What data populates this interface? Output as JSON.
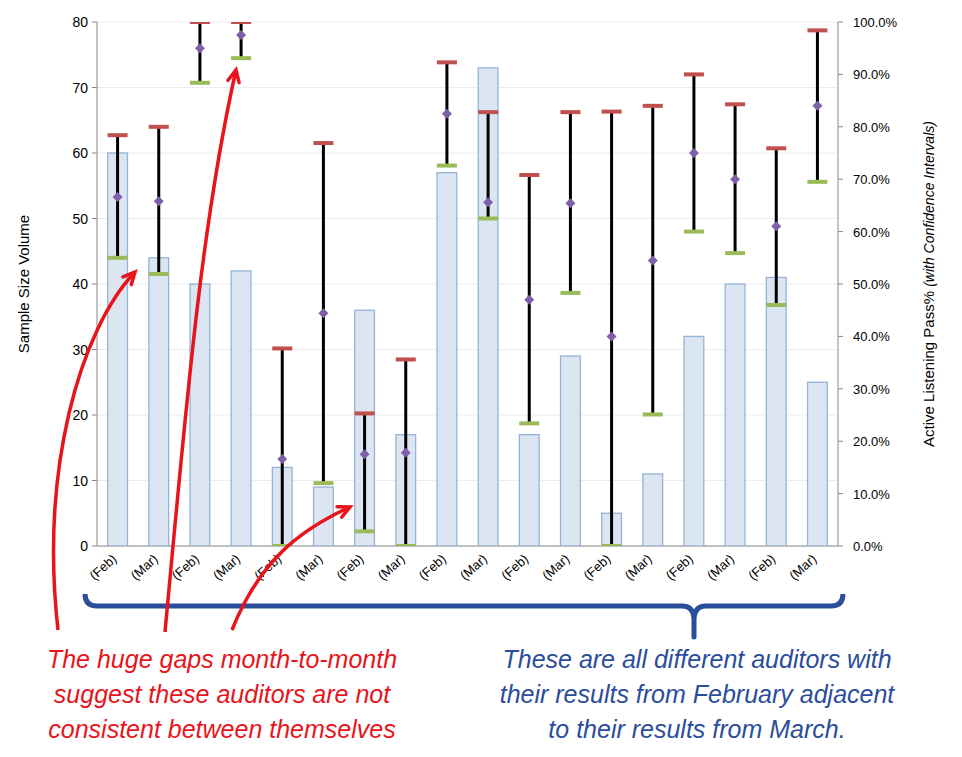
{
  "chart_data": {
    "type": "bar",
    "y_label": "Sample Size Volume",
    "y2_label": "Active Listening Pass%",
    "y2_label_note": "(with Confidence Intervals)",
    "categories": [
      "(Feb)",
      "(Mar)",
      "(Feb)",
      "(Mar)",
      "(Feb)",
      "(Mar)",
      "(Feb)",
      "(Mar)",
      "(Feb)",
      "(Mar)",
      "(Feb)",
      "(Mar)",
      "(Feb)",
      "(Mar)",
      "(Feb)",
      "(Mar)",
      "(Feb)",
      "(Mar)"
    ],
    "series": [
      {
        "type": "bar",
        "color": "#dce6f2",
        "values": [
          60,
          44,
          40,
          42,
          12,
          9,
          36,
          17,
          57,
          73,
          17,
          29,
          5,
          11,
          32,
          40,
          41,
          25
        ]
      },
      {
        "type": "scatter",
        "axis": "y2",
        "marker": "diamond",
        "color": "#7f60a8",
        "values": [
          66.6,
          65.8,
          95,
          97.5,
          16.6,
          44.4,
          17.5,
          17.8,
          82.5,
          65.6,
          47,
          65.4,
          40,
          54.5,
          75,
          70,
          61,
          84
        ],
        "lower": [
          55,
          51.9,
          88.4,
          93.1,
          0,
          12,
          2.8,
          0,
          72.6,
          62.5,
          23.4,
          48.3,
          0,
          25.1,
          60,
          55.9,
          46,
          69.5
        ],
        "upper": [
          78.4,
          80,
          100,
          100,
          37.7,
          76.9,
          25.3,
          35.6,
          92.3,
          82.8,
          70.8,
          82.8,
          82.9,
          84,
          90,
          84.3,
          75.9,
          98.4
        ]
      }
    ],
    "ylim": [
      0,
      80
    ],
    "yticks": [
      0,
      10,
      20,
      30,
      40,
      50,
      60,
      70,
      80
    ],
    "y2lim": [
      0,
      100
    ],
    "y2ticks": [
      {
        "value": 0,
        "label": "0.0%"
      },
      {
        "value": 10,
        "label": "10.0%"
      },
      {
        "value": 20,
        "label": "20.0%"
      },
      {
        "value": 30,
        "label": "30.0%"
      },
      {
        "value": 40,
        "label": "40.0%"
      },
      {
        "value": 50,
        "label": "50.0%"
      },
      {
        "value": 60,
        "label": "60.0%"
      },
      {
        "value": 70,
        "label": "70.0%"
      },
      {
        "value": 80,
        "label": "80.0%"
      },
      {
        "value": 90,
        "label": "90.0%"
      },
      {
        "value": 100,
        "label": "100.0%"
      }
    ],
    "grid": true,
    "annotations": [
      {
        "text": [
          "The huge gaps month-to-month",
          "suggest these auditors are not",
          "consistent between themselves"
        ],
        "color": "#e8141b"
      },
      {
        "text": [
          "These are all different auditors with",
          "their results from February adjacent",
          "to their results from March."
        ],
        "color": "#2a4d9c"
      }
    ]
  }
}
